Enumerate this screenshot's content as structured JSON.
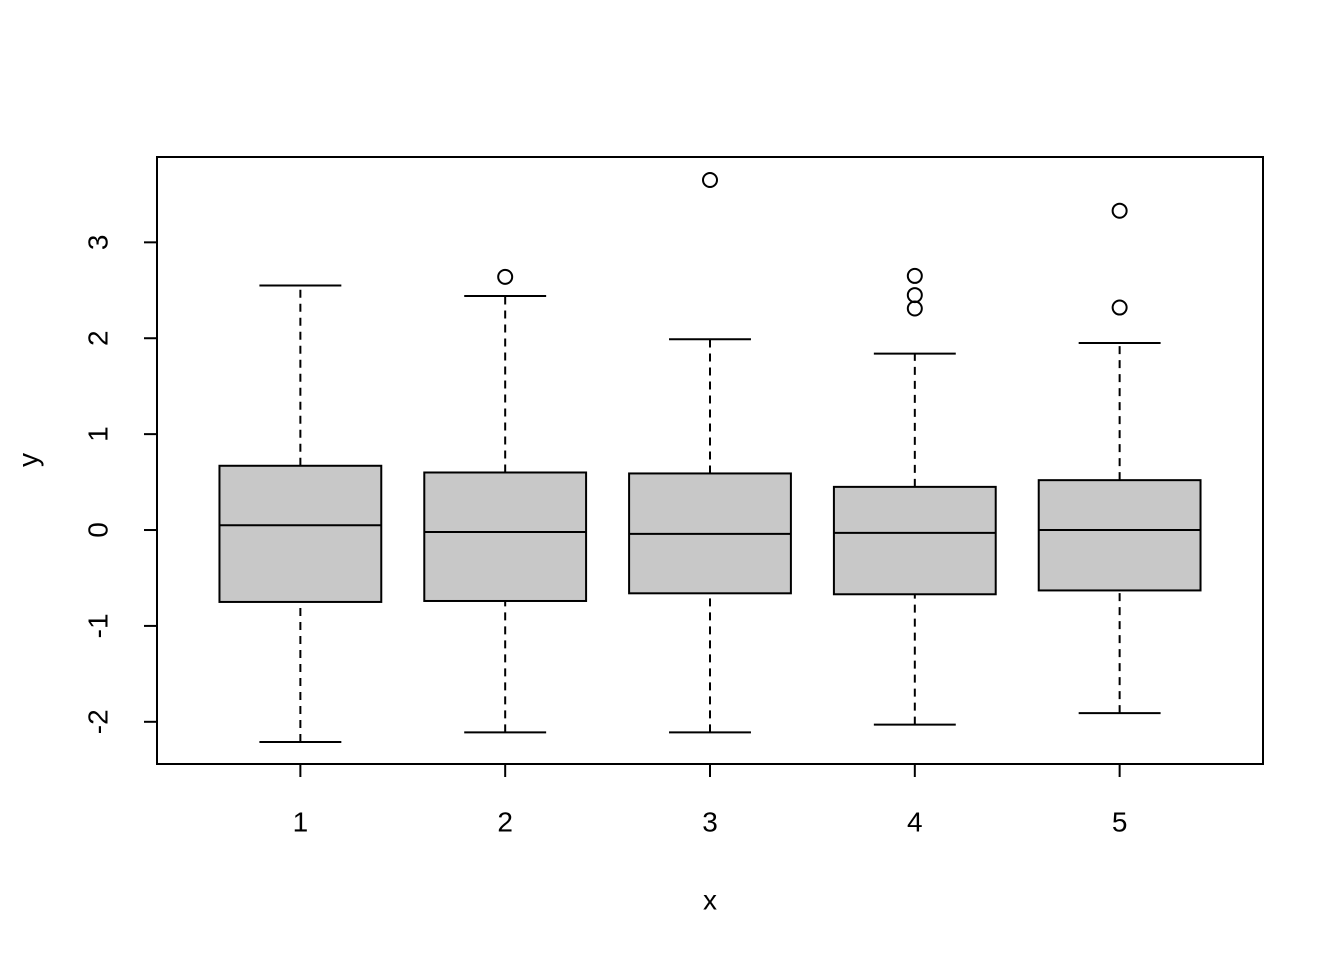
{
  "chart_data": {
    "type": "boxplot",
    "x_label": "x",
    "y_label": "y",
    "categories": [
      "1",
      "2",
      "3",
      "4",
      "5"
    ],
    "color": "#c8c8c8",
    "boxes": [
      {
        "whisker_low": -2.21,
        "q1": -0.75,
        "median": 0.05,
        "q3": 0.67,
        "whisker_high": 2.55,
        "outliers": []
      },
      {
        "whisker_low": -2.11,
        "q1": -0.74,
        "median": -0.02,
        "q3": 0.6,
        "whisker_high": 2.44,
        "outliers": [
          2.64
        ]
      },
      {
        "whisker_low": -2.11,
        "q1": -0.66,
        "median": -0.04,
        "q3": 0.59,
        "whisker_high": 1.99,
        "outliers": [
          3.65
        ]
      },
      {
        "whisker_low": -2.03,
        "q1": -0.67,
        "median": -0.03,
        "q3": 0.45,
        "whisker_high": 1.84,
        "outliers": [
          2.65,
          2.45,
          2.31
        ]
      },
      {
        "whisker_low": -1.91,
        "q1": -0.63,
        "median": 0.0,
        "q3": 0.52,
        "whisker_high": 1.95,
        "outliers": [
          3.33,
          2.32
        ]
      }
    ],
    "ylim": [
      -2.44,
      3.89
    ],
    "yticks": [
      -2,
      -1,
      0,
      1,
      2,
      3
    ]
  }
}
